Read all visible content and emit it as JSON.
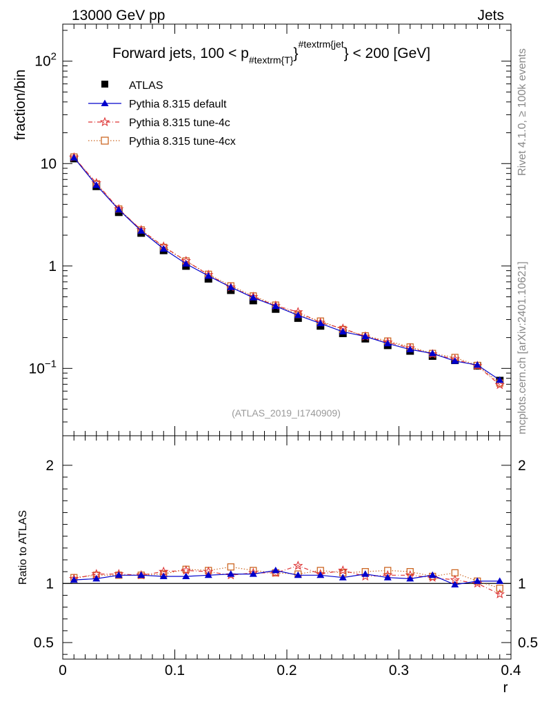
{
  "header": {
    "left": "13000 GeV pp",
    "right": "Jets"
  },
  "side_labels": {
    "rivet": "Rivet 4.1.0, ≥ 100k events",
    "mcplots": "mcplots.cern.ch [arXiv:2401.10621]"
  },
  "colors": {
    "atlas": "#000000",
    "default": "#0000cc",
    "tune4c": "#dd3333",
    "tune4cx": "#cc6622"
  },
  "chart_data": [
    {
      "type": "line",
      "scale": "log",
      "title_main": "Forward jets, 100 < p",
      "title_sub": "#textrm{T}",
      "title_sup": "#textrm{jet",
      "title_brace": "}",
      "title_tail": " < 200 [GeV]",
      "ylabel": "fraction/bin",
      "watermark": "(ATLAS_2019_I1740909)",
      "xlim": [
        0,
        0.4
      ],
      "ylim": [
        0.022,
        230
      ],
      "y_ticks": [
        {
          "value": 0.1,
          "base": "10",
          "exp": "−1"
        },
        {
          "value": 1,
          "base": "1",
          "exp": ""
        },
        {
          "value": 10,
          "base": "10",
          "exp": ""
        },
        {
          "value": 100,
          "base": "10",
          "exp": "2"
        }
      ],
      "x": [
        0.01,
        0.03,
        0.05,
        0.07,
        0.09,
        0.11,
        0.13,
        0.15,
        0.17,
        0.19,
        0.21,
        0.23,
        0.25,
        0.27,
        0.29,
        0.31,
        0.33,
        0.35,
        0.37,
        0.39
      ],
      "series": [
        {
          "name": "ATLAS",
          "key": "atlas",
          "marker": "square",
          "values": [
            11.2,
            6.0,
            3.35,
            2.1,
            1.42,
            1.0,
            0.75,
            0.58,
            0.46,
            0.38,
            0.31,
            0.26,
            0.22,
            0.195,
            0.168,
            0.148,
            0.132,
            0.12,
            0.106,
            0.076
          ]
        },
        {
          "name": "Pythia 8.315 default",
          "key": "default",
          "marker": "triangle",
          "values": [
            11.4,
            6.15,
            3.55,
            2.2,
            1.47,
            1.05,
            0.8,
            0.62,
            0.49,
            0.405,
            0.33,
            0.275,
            0.228,
            0.205,
            0.175,
            0.153,
            0.14,
            0.118,
            0.108,
            0.077
          ]
        },
        {
          "name": "Pythia 8.315 tune-4c",
          "key": "tune4c",
          "marker": "star",
          "values": [
            11.5,
            6.45,
            3.6,
            2.25,
            1.55,
            1.12,
            0.82,
            0.62,
            0.5,
            0.41,
            0.355,
            0.28,
            0.245,
            0.205,
            0.18,
            0.158,
            0.138,
            0.123,
            0.106,
            0.069
          ]
        },
        {
          "name": "Pythia 8.315 tune-4cx",
          "key": "tune4cx",
          "marker": "open-square",
          "values": [
            11.6,
            6.35,
            3.6,
            2.25,
            1.52,
            1.12,
            0.83,
            0.64,
            0.51,
            0.415,
            0.335,
            0.29,
            0.24,
            0.208,
            0.185,
            0.162,
            0.14,
            0.128,
            0.107,
            0.072
          ]
        }
      ]
    },
    {
      "type": "line",
      "scale": "linear",
      "ylabel": "Ratio to ATLAS",
      "xlabel": "r",
      "xlim": [
        0,
        0.4
      ],
      "ylim": [
        0.36,
        2.25
      ],
      "x_tick_labels": [
        "0",
        "0.1",
        "0.2",
        "0.3",
        "0.4"
      ],
      "x_tick_values": [
        0,
        0.1,
        0.2,
        0.3,
        0.4
      ],
      "y_tick_labels": [
        "0.5",
        "1",
        "2"
      ],
      "y_tick_values": [
        0.5,
        1,
        2
      ],
      "x": [
        0.01,
        0.03,
        0.05,
        0.07,
        0.09,
        0.11,
        0.13,
        0.15,
        0.17,
        0.19,
        0.21,
        0.23,
        0.25,
        0.27,
        0.29,
        0.31,
        0.33,
        0.35,
        0.37,
        0.39
      ],
      "series": [
        {
          "name": "Pythia 8.315 default",
          "key": "default",
          "marker": "triangle",
          "values": [
            1.03,
            1.04,
            1.07,
            1.07,
            1.06,
            1.06,
            1.07,
            1.08,
            1.08,
            1.11,
            1.07,
            1.07,
            1.05,
            1.08,
            1.05,
            1.04,
            1.07,
            0.99,
            1.02,
            1.02
          ]
        },
        {
          "name": "Pythia 8.315 tune-4c",
          "key": "tune4c",
          "marker": "star",
          "values": [
            1.04,
            1.08,
            1.08,
            1.07,
            1.1,
            1.11,
            1.1,
            1.07,
            1.09,
            1.09,
            1.15,
            1.08,
            1.11,
            1.06,
            1.07,
            1.07,
            1.05,
            1.03,
            1.0,
            0.91
          ]
        },
        {
          "name": "Pythia 8.315 tune-4cx",
          "key": "tune4cx",
          "marker": "open-square",
          "values": [
            1.05,
            1.07,
            1.07,
            1.07,
            1.08,
            1.12,
            1.11,
            1.14,
            1.11,
            1.09,
            1.08,
            1.11,
            1.09,
            1.1,
            1.11,
            1.1,
            1.06,
            1.09,
            1.02,
            0.96
          ]
        }
      ]
    }
  ]
}
